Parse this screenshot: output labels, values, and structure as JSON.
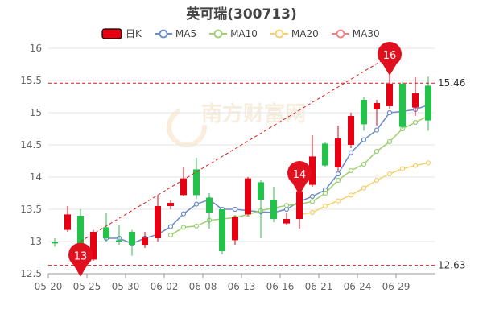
{
  "chart_data": {
    "type": "candlestick",
    "title": "英可瑞(300713)",
    "ylim": [
      12.5,
      16.0
    ],
    "yticks": [
      12.5,
      13,
      13.5,
      14,
      14.5,
      15,
      15.5,
      16
    ],
    "ytick_labels": [
      "12.5",
      "13",
      "13.5",
      "14",
      "14.5",
      "15",
      "15.5",
      "16"
    ],
    "xtick_labels": [
      "05-20",
      "05-25",
      "05-30",
      "06-02",
      "06-08",
      "06-13",
      "06-16",
      "06-21",
      "06-24",
      "06-29"
    ],
    "xtick_indices": [
      0,
      3,
      6,
      9,
      12,
      15,
      18,
      21,
      24,
      27
    ],
    "grid": true,
    "legend": {
      "position": "top",
      "items": [
        {
          "name": "日K",
          "color": "#e60012",
          "type": "box"
        },
        {
          "name": "MA5",
          "color": "#6a8ccb",
          "type": "line"
        },
        {
          "name": "MA10",
          "color": "#9cd070",
          "type": "line"
        },
        {
          "name": "MA20",
          "color": "#f7cf6a",
          "type": "line"
        },
        {
          "name": "MA30",
          "color": "#f08080",
          "type": "line"
        }
      ]
    },
    "up_color": "#e60012",
    "down_color": "#24c24b",
    "candles": [
      {
        "o": 13.0,
        "c": 12.97,
        "l": 12.92,
        "h": 13.05
      },
      {
        "o": 13.18,
        "c": 13.42,
        "l": 13.15,
        "h": 13.55
      },
      {
        "o": 13.4,
        "c": 12.65,
        "l": 12.63,
        "h": 13.5
      },
      {
        "o": 12.72,
        "c": 13.15,
        "l": 12.7,
        "h": 13.18
      },
      {
        "o": 13.22,
        "c": 13.05,
        "l": 13.0,
        "h": 13.45
      },
      {
        "o": 13.02,
        "c": 13.0,
        "l": 12.95,
        "h": 13.25
      },
      {
        "o": 13.15,
        "c": 12.95,
        "l": 12.78,
        "h": 13.18
      },
      {
        "o": 12.95,
        "c": 13.06,
        "l": 12.9,
        "h": 13.15
      },
      {
        "o": 13.05,
        "c": 13.55,
        "l": 13.0,
        "h": 13.72
      },
      {
        "o": 13.55,
        "c": 13.6,
        "l": 13.5,
        "h": 13.65
      },
      {
        "o": 13.72,
        "c": 13.98,
        "l": 13.7,
        "h": 14.15
      },
      {
        "o": 14.12,
        "c": 13.72,
        "l": 13.66,
        "h": 14.3
      },
      {
        "o": 13.68,
        "c": 13.45,
        "l": 13.2,
        "h": 13.75
      },
      {
        "o": 13.5,
        "c": 12.85,
        "l": 12.8,
        "h": 13.5
      },
      {
        "o": 13.02,
        "c": 13.38,
        "l": 12.95,
        "h": 13.4
      },
      {
        "o": 13.42,
        "c": 13.98,
        "l": 13.4,
        "h": 14.0
      },
      {
        "o": 13.92,
        "c": 13.65,
        "l": 13.05,
        "h": 13.95
      },
      {
        "o": 13.65,
        "c": 13.35,
        "l": 13.3,
        "h": 13.85
      },
      {
        "o": 13.28,
        "c": 13.35,
        "l": 13.25,
        "h": 13.45
      },
      {
        "o": 13.35,
        "c": 13.78,
        "l": 13.2,
        "h": 13.8
      },
      {
        "o": 13.88,
        "c": 14.32,
        "l": 13.85,
        "h": 14.65
      },
      {
        "o": 14.52,
        "c": 14.18,
        "l": 14.15,
        "h": 14.55
      },
      {
        "o": 14.15,
        "c": 14.6,
        "l": 14.1,
        "h": 14.8
      },
      {
        "o": 14.5,
        "c": 14.95,
        "l": 14.45,
        "h": 15.0
      },
      {
        "o": 15.2,
        "c": 14.82,
        "l": 14.72,
        "h": 15.25
      },
      {
        "o": 15.05,
        "c": 15.15,
        "l": 14.8,
        "h": 15.2
      },
      {
        "o": 15.1,
        "c": 15.45,
        "l": 15.05,
        "h": 15.65
      },
      {
        "o": 15.45,
        "c": 14.78,
        "l": 14.75,
        "h": 15.48
      },
      {
        "o": 15.08,
        "c": 15.3,
        "l": 14.95,
        "h": 15.55
      },
      {
        "o": 15.42,
        "c": 14.88,
        "l": 14.72,
        "h": 15.56
      }
    ],
    "ma5": [
      null,
      null,
      null,
      null,
      13.05,
      13.05,
      12.97,
      13.05,
      13.11,
      13.23,
      13.43,
      13.58,
      13.65,
      13.5,
      13.5,
      13.48,
      13.46,
      13.45,
      13.5,
      13.62,
      13.7,
      13.8,
      14.05,
      14.38,
      14.58,
      14.73,
      15.0,
      15.02,
      15.05,
      15.12
    ],
    "ma10": [
      null,
      null,
      null,
      null,
      null,
      null,
      null,
      null,
      null,
      13.1,
      13.22,
      13.24,
      13.33,
      13.35,
      13.37,
      13.42,
      13.48,
      13.52,
      13.56,
      13.58,
      13.62,
      13.75,
      13.95,
      14.1,
      14.2,
      14.4,
      14.55,
      14.75,
      14.85,
      14.95
    ],
    "ma20": [
      null,
      null,
      null,
      null,
      null,
      null,
      null,
      null,
      null,
      null,
      null,
      null,
      null,
      null,
      null,
      null,
      null,
      null,
      null,
      13.42,
      13.45,
      13.55,
      13.63,
      13.72,
      13.83,
      13.95,
      14.05,
      14.13,
      14.18,
      14.22
    ],
    "trend_line": {
      "from": [
        2,
        13.0
      ],
      "to": [
        26,
        15.88
      ]
    },
    "hlines": [
      {
        "value": 15.46,
        "label": "15.46"
      },
      {
        "value": 12.63,
        "label": "12.63"
      }
    ],
    "pins": [
      {
        "index": 2,
        "label": "13"
      },
      {
        "index": 19,
        "label": "14"
      },
      {
        "index": 26,
        "label": "16"
      }
    ],
    "watermark": "南方财富网 southmoney.com"
  }
}
